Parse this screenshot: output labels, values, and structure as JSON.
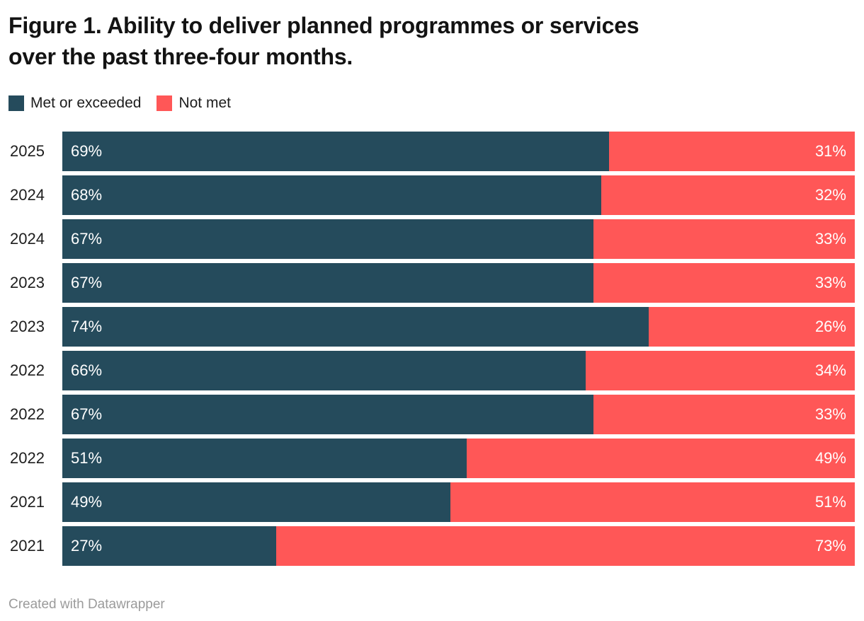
{
  "title": {
    "lines": [
      "Figure 1. Ability to deliver planned programmes or services",
      "over the past three-four months."
    ],
    "full_text": "Figure 1. Ability to deliver planned programmes or services over the past three-four months."
  },
  "legend": [
    {
      "label": "Met or exceeded",
      "color": "#254b5c"
    },
    {
      "label": "Not met",
      "color": "#ff5757"
    }
  ],
  "footer": {
    "text": "Created with Datawrapper"
  },
  "colors": {
    "met": "#254b5c",
    "not_met": "#ff5757",
    "title_text": "#131313",
    "category_text": "#1d1d1d",
    "value_text": "#ffffff",
    "attribution_text": "#9b9b9b",
    "background": "#ffffff"
  },
  "chart_data": {
    "type": "bar",
    "orientation": "horizontal",
    "stacked": true,
    "normalized_to_100": true,
    "title": "Figure 1. Ability to deliver planned programmes or services over the past three-four months.",
    "categories": [
      "2025",
      "2024",
      "2024",
      "2023",
      "2023",
      "2022",
      "2022",
      "2022",
      "2021",
      "2021"
    ],
    "series": [
      {
        "name": "Met or exceeded",
        "color": "#254b5c",
        "values": [
          69,
          68,
          67,
          67,
          74,
          66,
          67,
          51,
          49,
          27
        ]
      },
      {
        "name": "Not met",
        "color": "#ff5757",
        "values": [
          31,
          32,
          33,
          33,
          26,
          34,
          33,
          49,
          51,
          73
        ]
      }
    ],
    "value_suffix": "%",
    "xlim": [
      0,
      100
    ],
    "xlabel": "",
    "ylabel": "",
    "grid": false,
    "legend_position": "top",
    "attribution": "Created with Datawrapper"
  }
}
